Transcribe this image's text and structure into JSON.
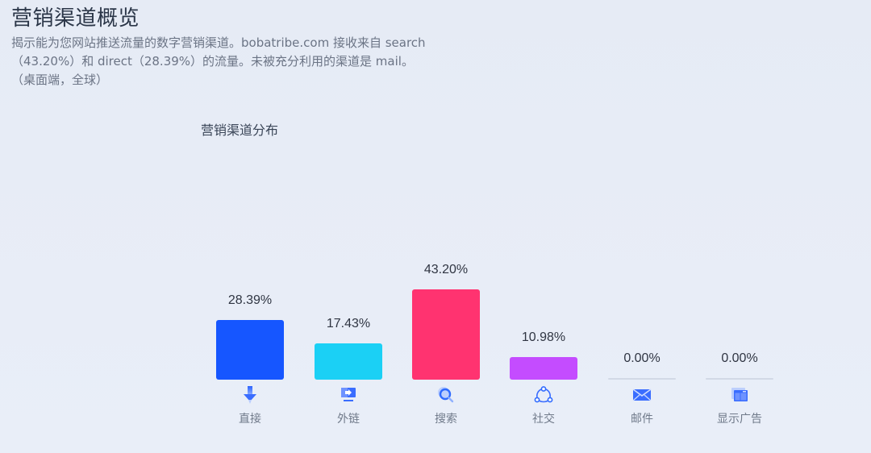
{
  "header": {
    "title": "营销渠道概览",
    "description_lines": [
      "揭示能为您网站推送流量的数字营销渠道。bobatribe.com 接收来自 search",
      "（43.20%）和 direct（28.39%）的流量。未被充分利用的渠道是 mail。",
      "（桌面端，全球）"
    ]
  },
  "colors": {
    "background": "#e8edf7",
    "direct": "#1656ff",
    "referral": "#1bd0f5",
    "search": "#ff3370",
    "social": "#c44cff",
    "mail": "#d2d9e6",
    "display_ads": "#d2d9e6",
    "icon_blue": "#2f6bff"
  },
  "chart_data": {
    "type": "bar",
    "title": "营销渠道分布",
    "categories": [
      "直接",
      "外链",
      "搜索",
      "社交",
      "邮件",
      "显示广告"
    ],
    "values": [
      28.39,
      17.43,
      43.2,
      10.98,
      0.0,
      0.0
    ],
    "value_labels": [
      "28.39%",
      "17.43%",
      "43.20%",
      "10.98%",
      "0.00%",
      "0.00%"
    ],
    "icons": [
      "arrow-down-icon",
      "monitor-arrow-icon",
      "magnifier-icon",
      "share-network-icon",
      "envelope-icon",
      "browser-window-icon"
    ],
    "bar_colors": [
      "#1656ff",
      "#1bd0f5",
      "#ff3370",
      "#c44cff",
      "#d2d9e6",
      "#d2d9e6"
    ],
    "xlabel": "",
    "ylabel": "",
    "ylim": [
      0,
      45
    ],
    "grid": false,
    "legend": "none"
  }
}
